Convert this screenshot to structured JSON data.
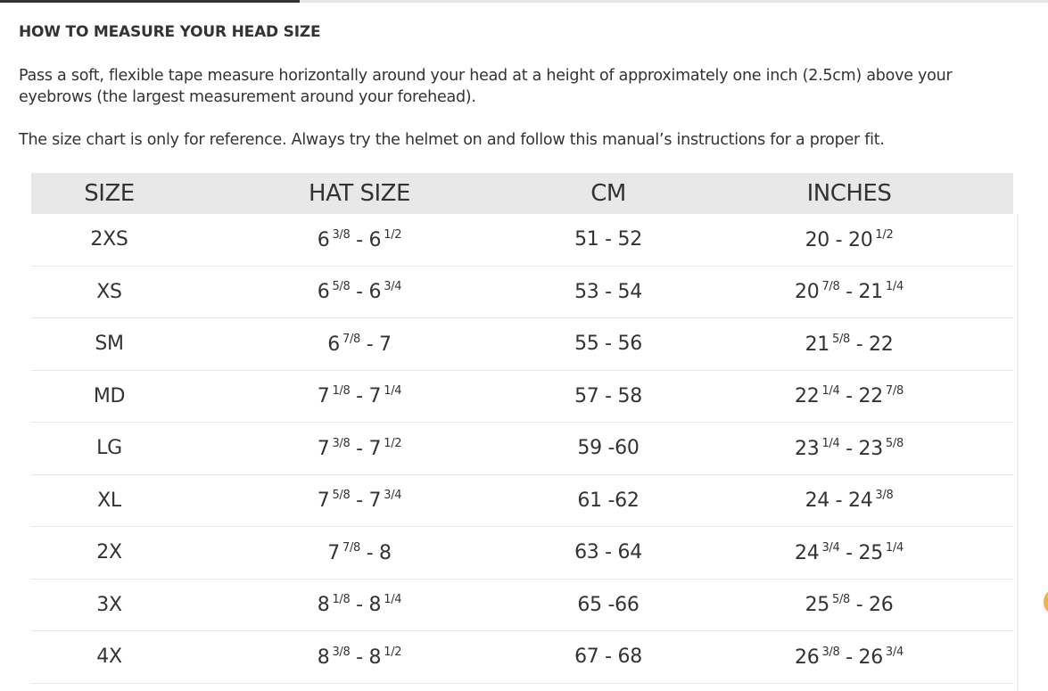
{
  "heading": "HOW TO MEASURE YOUR HEAD SIZE",
  "instructions": "Pass a soft, flexible tape measure horizontally around your head at a height of approximately one inch (2.5cm) above your eyebrows (the largest measurement around your forehead).",
  "disclaimer": "The size chart is only for reference. Always try the helmet on and follow this manual’s instructions for a proper fit.",
  "table": {
    "headers": [
      "SIZE",
      "HAT SIZE",
      "CM",
      "INCHES"
    ],
    "rows": [
      [
        "2XS",
        "6 3/8 - 6 1/2",
        "51 - 52",
        "20 - 20 1/2"
      ],
      [
        "XS",
        "6 5/8 - 6 3/4",
        "53 - 54",
        "20 7/8 - 21 1/4"
      ],
      [
        "SM",
        "6 7/8 - 7",
        "55 - 56",
        "21 5/8 - 22"
      ],
      [
        "MD",
        "7 1/8 - 7 1/4",
        "57 - 58",
        "22 1/4 - 22 7/8"
      ],
      [
        "LG",
        "7 3/8 - 7 1/2",
        "59 -60",
        "23 1/4 - 23 5/8"
      ],
      [
        "XL",
        "7 5/8 - 7 3/4",
        "61 -62",
        "24 - 24 3/8"
      ],
      [
        "2X",
        "7 7/8 - 8",
        "63 - 64",
        "24 3/4 - 25 1/4"
      ],
      [
        "3X",
        "8 1/8 - 8 1/4",
        "65 -66",
        "25 5/8 - 26"
      ],
      [
        "4X",
        "8 3/8 - 8 1/2",
        "67 - 68",
        "26 3/8 - 26 3/4"
      ]
    ]
  },
  "colors": {
    "header_bg": "#e8e8e8",
    "text": "#333333",
    "chat_bubble": "#f5b041"
  }
}
